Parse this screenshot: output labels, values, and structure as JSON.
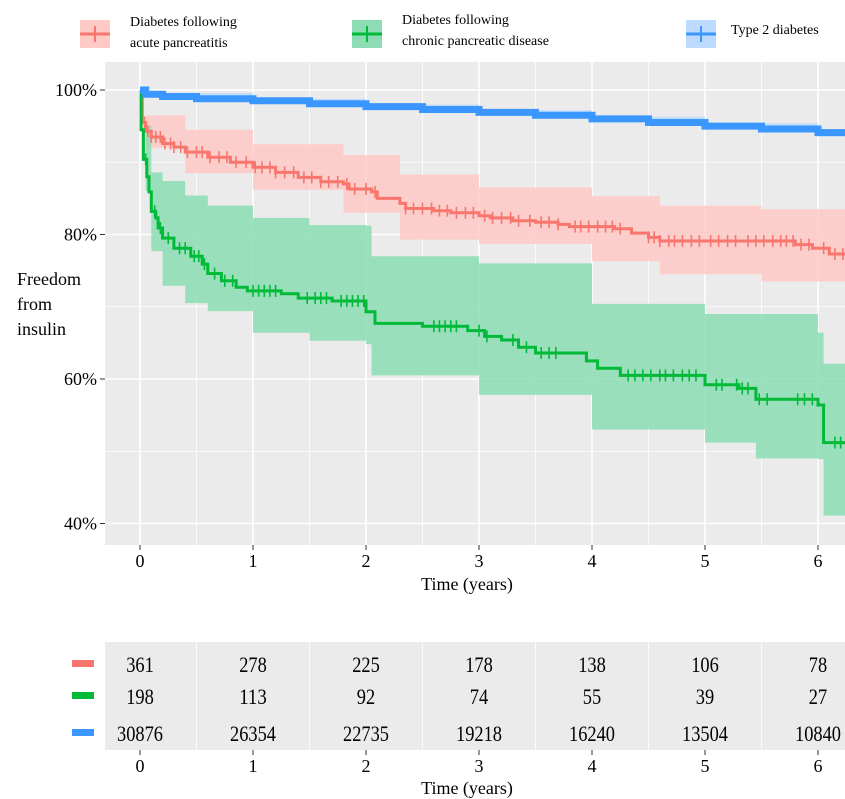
{
  "chart_data": [
    {
      "type": "line",
      "subtype": "kaplan-meier survival curve with confidence bands",
      "title": "",
      "xlabel": "Time (years)",
      "ylabel": "Freedom from insulin",
      "xlim": [
        -0.3,
        6.25
      ],
      "ylim": [
        38,
        102
      ],
      "x_ticks": [
        "0",
        "1",
        "2",
        "3",
        "4",
        "5",
        "6"
      ],
      "y_ticks": [
        "40%",
        "60%",
        "80%",
        "100%"
      ],
      "grid": true,
      "legend_position": "top",
      "series": [
        {
          "name": "Diabetes following acute pancreatitis",
          "color": "#F8766D",
          "band_color": "#FFC9C5",
          "points": [
            [
              0,
              100
            ],
            [
              0.02,
              95.5
            ],
            [
              0.05,
              94.3
            ],
            [
              0.1,
              93.5
            ],
            [
              0.2,
              92.6
            ],
            [
              0.3,
              92.1
            ],
            [
              0.4,
              91.4
            ],
            [
              0.6,
              90.7
            ],
            [
              0.8,
              90
            ],
            [
              1.0,
              89.3
            ],
            [
              1.2,
              88.6
            ],
            [
              1.4,
              87.9
            ],
            [
              1.6,
              87.3
            ],
            [
              1.8,
              87
            ],
            [
              1.85,
              86.3
            ],
            [
              2.05,
              85.9
            ],
            [
              2.1,
              85
            ],
            [
              2.3,
              84.3
            ],
            [
              2.35,
              83.6
            ],
            [
              2.6,
              83.3
            ],
            [
              2.75,
              83
            ],
            [
              3.0,
              82.6
            ],
            [
              3.1,
              82.3
            ],
            [
              3.3,
              81.9
            ],
            [
              3.5,
              81.7
            ],
            [
              3.7,
              81.4
            ],
            [
              3.8,
              81.1
            ],
            [
              4.2,
              80.8
            ],
            [
              4.35,
              80.2
            ],
            [
              4.5,
              79.6
            ],
            [
              4.6,
              79.1
            ],
            [
              5.3,
              79.1
            ],
            [
              5.8,
              78.6
            ],
            [
              5.95,
              78.1
            ],
            [
              6.1,
              77.3
            ],
            [
              6.25,
              77.3
            ]
          ],
          "ci_upper": [
            [
              0,
              100
            ],
            [
              0.05,
              96.5
            ],
            [
              0.4,
              94.5
            ],
            [
              1.0,
              92.5
            ],
            [
              1.8,
              91
            ],
            [
              2.3,
              88.3
            ],
            [
              3.0,
              86.5
            ],
            [
              4.0,
              85.3
            ],
            [
              4.6,
              84
            ],
            [
              5.5,
              83.5
            ],
            [
              6.25,
              83
            ]
          ],
          "ci_lower": [
            [
              0,
              100
            ],
            [
              0.05,
              92
            ],
            [
              0.4,
              88.5
            ],
            [
              1.0,
              86.2
            ],
            [
              1.8,
              83
            ],
            [
              2.3,
              79.3
            ],
            [
              3.0,
              78.7
            ],
            [
              4.0,
              76.3
            ],
            [
              4.6,
              74.5
            ],
            [
              5.5,
              73.5
            ],
            [
              6.25,
              72
            ]
          ],
          "censor_marks": [
            0.04,
            0.07,
            0.1,
            0.14,
            0.18,
            0.22,
            0.27,
            0.3,
            0.36,
            0.42,
            0.5,
            0.55,
            0.62,
            0.7,
            0.77,
            0.85,
            0.94,
            1.02,
            1.08,
            1.15,
            1.2,
            1.28,
            1.36,
            1.45,
            1.52,
            1.6,
            1.67,
            1.75,
            1.83,
            1.9,
            2.0,
            2.08,
            2.35,
            2.42,
            2.5,
            2.58,
            2.65,
            2.72,
            2.8,
            2.88,
            2.95,
            3.05,
            3.12,
            3.2,
            3.28,
            3.35,
            3.45,
            3.55,
            3.62,
            3.7,
            3.85,
            3.9,
            3.97,
            4.05,
            4.12,
            4.18,
            4.25,
            4.5,
            4.55,
            4.6,
            4.68,
            4.73,
            4.8,
            4.88,
            4.95,
            5.05,
            5.12,
            5.2,
            5.27,
            5.38,
            5.45,
            5.52,
            5.6,
            5.67,
            5.72,
            5.78,
            5.85,
            5.92,
            6.05,
            6.15,
            6.22
          ]
        },
        {
          "name": "Diabetes following chronic pancreatic disease",
          "color": "#00BA38",
          "band_color": "#8CDDB4",
          "points": [
            [
              0,
              100
            ],
            [
              0.01,
              94.5
            ],
            [
              0.03,
              90.4
            ],
            [
              0.06,
              88
            ],
            [
              0.08,
              85.9
            ],
            [
              0.1,
              83.2
            ],
            [
              0.14,
              82.3
            ],
            [
              0.16,
              80.9
            ],
            [
              0.2,
              79.5
            ],
            [
              0.3,
              78.1
            ],
            [
              0.45,
              77
            ],
            [
              0.55,
              75.9
            ],
            [
              0.6,
              74.6
            ],
            [
              0.72,
              73.6
            ],
            [
              0.85,
              72.7
            ],
            [
              0.95,
              72.2
            ],
            [
              1.25,
              71.8
            ],
            [
              1.4,
              71.2
            ],
            [
              1.7,
              70.8
            ],
            [
              2.0,
              69.3
            ],
            [
              2.08,
              67.7
            ],
            [
              2.5,
              67.3
            ],
            [
              2.9,
              66.7
            ],
            [
              3.05,
              65.9
            ],
            [
              3.2,
              65.4
            ],
            [
              3.35,
              64.4
            ],
            [
              3.5,
              63.6
            ],
            [
              3.95,
              62.5
            ],
            [
              4.05,
              61.5
            ],
            [
              4.25,
              60.5
            ],
            [
              5.0,
              59.2
            ],
            [
              5.3,
              58.7
            ],
            [
              5.45,
              57.2
            ],
            [
              6.0,
              56.4
            ],
            [
              6.05,
              51.2
            ],
            [
              6.25,
              51.2
            ]
          ],
          "ci_upper": [
            [
              0,
              100
            ],
            [
              0.05,
              95
            ],
            [
              0.1,
              88.6
            ],
            [
              0.2,
              87.4
            ],
            [
              0.4,
              85.4
            ],
            [
              0.6,
              84
            ],
            [
              1.0,
              82.3
            ],
            [
              1.5,
              81.3
            ],
            [
              2.0,
              81.2
            ],
            [
              2.05,
              77
            ],
            [
              3.0,
              76
            ],
            [
              4.0,
              70.4
            ],
            [
              5.0,
              69
            ],
            [
              6.0,
              66.4
            ],
            [
              6.05,
              62.1
            ],
            [
              6.25,
              62.1
            ]
          ],
          "ci_lower": [
            [
              0,
              100
            ],
            [
              0.05,
              86
            ],
            [
              0.1,
              77.7
            ],
            [
              0.2,
              72.9
            ],
            [
              0.4,
              70.5
            ],
            [
              0.6,
              69.4
            ],
            [
              1.0,
              66.4
            ],
            [
              1.5,
              65.3
            ],
            [
              2.0,
              64.8
            ],
            [
              2.05,
              60.5
            ],
            [
              3.0,
              57.8
            ],
            [
              4.0,
              53
            ],
            [
              5.0,
              51.2
            ],
            [
              5.45,
              49
            ],
            [
              6.0,
              48.9
            ],
            [
              6.05,
              41.1
            ],
            [
              6.25,
              41.1
            ]
          ],
          "censor_marks": [
            0.05,
            0.13,
            0.18,
            0.25,
            0.35,
            0.4,
            0.48,
            0.52,
            0.57,
            0.66,
            0.75,
            0.82,
            1.0,
            1.05,
            1.1,
            1.15,
            1.2,
            1.48,
            1.55,
            1.6,
            1.65,
            1.78,
            1.83,
            1.88,
            1.93,
            1.98,
            2.6,
            2.65,
            2.7,
            2.75,
            2.8,
            3.0,
            3.07,
            3.3,
            3.42,
            3.55,
            3.62,
            3.68,
            4.32,
            4.38,
            4.45,
            4.52,
            4.6,
            4.65,
            4.72,
            4.8,
            4.86,
            4.92,
            5.1,
            5.15,
            5.28,
            5.33,
            5.38,
            5.48,
            5.55,
            5.82,
            5.88,
            5.95,
            6.15,
            6.2
          ]
        },
        {
          "name": "Type 2 diabetes",
          "color": "#3A97FF",
          "band_color": "#BDDAFF",
          "points": [
            [
              0,
              100
            ],
            [
              0.05,
              99.4
            ],
            [
              0.2,
              99.1
            ],
            [
              0.5,
              98.8
            ],
            [
              1.0,
              98.5
            ],
            [
              1.5,
              98.1
            ],
            [
              2.0,
              97.7
            ],
            [
              2.5,
              97.3
            ],
            [
              3.0,
              96.9
            ],
            [
              3.5,
              96.5
            ],
            [
              4.0,
              96
            ],
            [
              4.5,
              95.5
            ],
            [
              5.0,
              95
            ],
            [
              5.5,
              94.6
            ],
            [
              6.0,
              94.1
            ],
            [
              6.25,
              93.9
            ]
          ],
          "ci_upper": [
            [
              0,
              100
            ],
            [
              0.05,
              99.6
            ],
            [
              1.0,
              98.8
            ],
            [
              2.0,
              98
            ],
            [
              3.0,
              97.2
            ],
            [
              4.0,
              96.3
            ],
            [
              5.0,
              95.4
            ],
            [
              6.0,
              94.6
            ],
            [
              6.25,
              94.3
            ]
          ],
          "ci_lower": [
            [
              0,
              100
            ],
            [
              0.05,
              99.2
            ],
            [
              1.0,
              98.2
            ],
            [
              2.0,
              97.4
            ],
            [
              3.0,
              96.6
            ],
            [
              4.0,
              95.7
            ],
            [
              5.0,
              94.6
            ],
            [
              6.0,
              93.6
            ],
            [
              6.25,
              93.3
            ]
          ]
        }
      ]
    },
    {
      "type": "table",
      "title": "",
      "xlabel": "Time (years)",
      "columns": [
        "0",
        "1",
        "2",
        "3",
        "4",
        "5",
        "6"
      ],
      "rows": [
        {
          "color": "#F8766D",
          "values": [
            "361",
            "278",
            "225",
            "178",
            "138",
            "106",
            "78"
          ]
        },
        {
          "color": "#00BA38",
          "values": [
            "198",
            "113",
            "92",
            "74",
            "55",
            "39",
            "27"
          ]
        },
        {
          "color": "#3A97FF",
          "values": [
            "30876",
            "26354",
            "22735",
            "19218",
            "16240",
            "13504",
            "10840"
          ]
        }
      ]
    }
  ],
  "legend": {
    "items": [
      {
        "line1": "Diabetes following",
        "line2": "acute pancreatitis"
      },
      {
        "line1": "Diabetes following",
        "line2": "chronic pancreatic disease"
      },
      {
        "line1": "Type 2 diabetes",
        "line2": ""
      }
    ]
  },
  "ylabel_lines": [
    "Freedom",
    "from",
    "insulin"
  ],
  "colors": {
    "panel_background": "#EBEBEB",
    "grid": "#FFFFFF"
  }
}
